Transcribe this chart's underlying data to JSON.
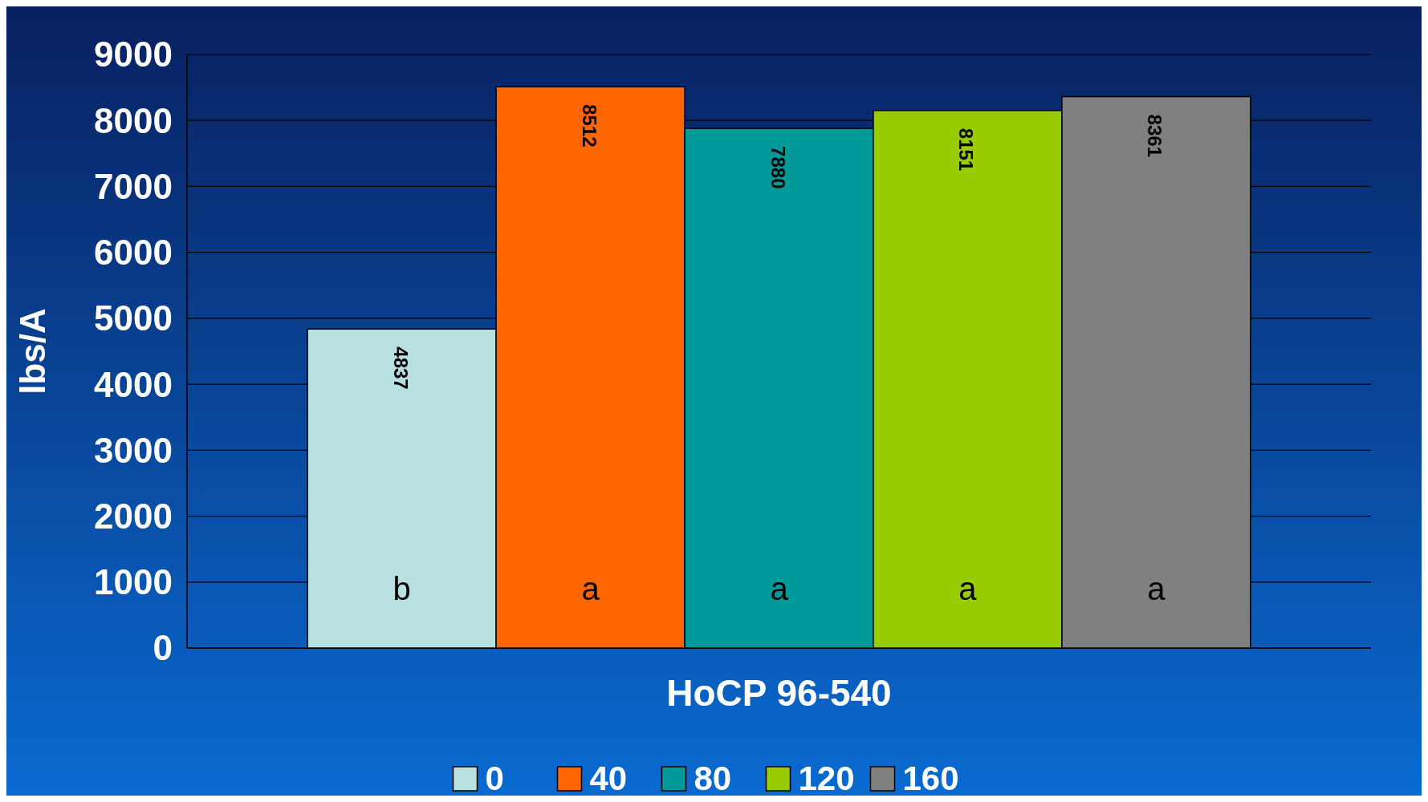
{
  "chart_data": {
    "type": "bar",
    "ylabel": "lbs/A",
    "xlabel": "HoCP 96-540",
    "categories": [
      null
    ],
    "series": [
      {
        "name": "0",
        "color": "#b8e0e0",
        "values": [
          4837
        ]
      },
      {
        "name": "40",
        "color": "#ff6600",
        "values": [
          8512
        ]
      },
      {
        "name": "80",
        "color": "#009999",
        "values": [
          7880
        ]
      },
      {
        "name": "120",
        "color": "#99cc00",
        "values": [
          8151
        ]
      },
      {
        "name": "160",
        "color": "#808080",
        "values": [
          8361
        ]
      }
    ],
    "ylim": [
      0,
      9000
    ],
    "yticks": [
      0,
      1000,
      2000,
      3000,
      4000,
      5000,
      6000,
      7000,
      8000,
      9000
    ],
    "grid": "y",
    "legend": "bottom",
    "data_labels": true,
    "annotations": [
      "b",
      "a",
      "a",
      "a",
      "a"
    ]
  }
}
